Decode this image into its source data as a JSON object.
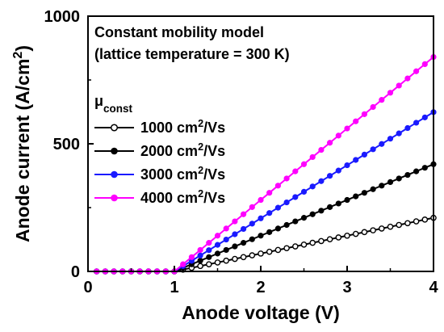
{
  "chart_data": {
    "type": "line",
    "xlabel": "Anode voltage (V)",
    "ylabel": "Anode current (A/cm²)",
    "ylabel_parts": {
      "before": "Anode current (A/cm",
      "sup": "2",
      "after": ")"
    },
    "xlim": [
      0,
      4
    ],
    "ylim": [
      0,
      1000
    ],
    "x_ticks": [
      0,
      1,
      2,
      3,
      4
    ],
    "y_ticks": [
      0,
      500,
      1000
    ],
    "x_tick_labels": [
      "0",
      "1",
      "2",
      "3",
      "4"
    ],
    "y_tick_labels": [
      "0",
      "500",
      "1000"
    ],
    "annotation_lines": [
      "Constant mobility model",
      "(lattice temperature = 300 K)"
    ],
    "legend_title": {
      "symbol": "μ",
      "subscript": "const"
    },
    "legend_placement": "upper-left inside plot",
    "grid": false,
    "threshold_voltage": 1.0,
    "point_step": 0.1,
    "series": [
      {
        "name": "1000 cm²/Vs",
        "label_parts": {
          "before": "1000 cm",
          "sup": "2",
          "after": "/Vs"
        },
        "color": "#000000",
        "marker": "open-circle",
        "slope_per_volt": 70,
        "values_at_ticks": {
          "1": 0,
          "2": 70,
          "3": 140,
          "4": 210
        }
      },
      {
        "name": "2000 cm²/Vs",
        "label_parts": {
          "before": "2000 cm",
          "sup": "2",
          "after": "/Vs"
        },
        "color": "#000000",
        "marker": "filled-circle",
        "slope_per_volt": 140,
        "values_at_ticks": {
          "1": 0,
          "2": 140,
          "3": 280,
          "4": 420
        }
      },
      {
        "name": "3000 cm²/Vs",
        "label_parts": {
          "before": "3000 cm",
          "sup": "2",
          "after": "/Vs"
        },
        "color": "#1a1aff",
        "marker": "filled-circle",
        "slope_per_volt": 208,
        "values_at_ticks": {
          "1": 0,
          "2": 208,
          "3": 416,
          "4": 624
        }
      },
      {
        "name": "4000 cm²/Vs",
        "label_parts": {
          "before": "4000 cm",
          "sup": "2",
          "after": "/Vs"
        },
        "color": "#ff00ff",
        "marker": "filled-circle",
        "slope_per_volt": 280,
        "values_at_ticks": {
          "1": 0,
          "2": 280,
          "3": 560,
          "4": 840
        }
      }
    ]
  }
}
